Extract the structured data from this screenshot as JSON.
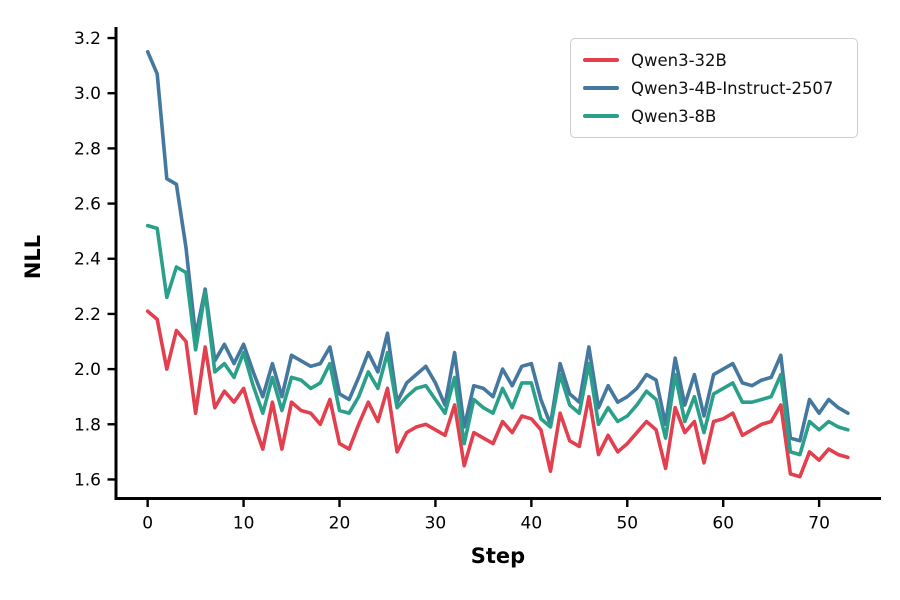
{
  "chart_data": {
    "type": "line",
    "title": "",
    "xlabel": "Step",
    "ylabel": "NLL",
    "x": [
      0,
      1,
      2,
      3,
      4,
      5,
      6,
      7,
      8,
      9,
      10,
      11,
      12,
      13,
      14,
      15,
      16,
      17,
      18,
      19,
      20,
      21,
      22,
      23,
      24,
      25,
      26,
      27,
      28,
      29,
      30,
      31,
      32,
      33,
      34,
      35,
      36,
      37,
      38,
      39,
      40,
      41,
      42,
      43,
      44,
      45,
      46,
      47,
      48,
      49,
      50,
      51,
      52,
      53,
      54,
      55,
      56,
      57,
      58,
      59,
      60,
      61,
      62,
      63,
      64,
      65,
      66,
      67,
      68,
      69,
      70,
      71,
      72,
      73
    ],
    "series": [
      {
        "name": "Qwen3-32B",
        "color": "#e2404e",
        "values": [
          2.21,
          2.18,
          2.0,
          2.14,
          2.1,
          1.84,
          2.08,
          1.86,
          1.92,
          1.88,
          1.93,
          1.81,
          1.71,
          1.88,
          1.71,
          1.88,
          1.85,
          1.84,
          1.8,
          1.89,
          1.73,
          1.71,
          1.8,
          1.88,
          1.81,
          1.93,
          1.7,
          1.77,
          1.79,
          1.8,
          1.78,
          1.76,
          1.87,
          1.65,
          1.77,
          1.75,
          1.73,
          1.81,
          1.77,
          1.83,
          1.82,
          1.78,
          1.63,
          1.84,
          1.74,
          1.72,
          1.9,
          1.69,
          1.76,
          1.7,
          1.73,
          1.77,
          1.81,
          1.78,
          1.64,
          1.86,
          1.77,
          1.81,
          1.66,
          1.81,
          1.82,
          1.84,
          1.76,
          1.78,
          1.8,
          1.81,
          1.87,
          1.62,
          1.61,
          1.7,
          1.67,
          1.71,
          1.69,
          1.68
        ]
      },
      {
        "name": "Qwen3-4B-Instruct-2507",
        "color": "#45789f",
        "values": [
          3.15,
          3.07,
          2.69,
          2.67,
          2.44,
          2.12,
          2.29,
          2.03,
          2.09,
          2.02,
          2.09,
          1.99,
          1.9,
          2.02,
          1.9,
          2.05,
          2.03,
          2.01,
          2.02,
          2.08,
          1.91,
          1.89,
          1.97,
          2.06,
          1.99,
          2.13,
          1.88,
          1.95,
          1.98,
          2.01,
          1.95,
          1.87,
          2.06,
          1.79,
          1.94,
          1.93,
          1.9,
          2.0,
          1.94,
          2.01,
          2.02,
          1.89,
          1.8,
          2.02,
          1.91,
          1.88,
          2.08,
          1.86,
          1.94,
          1.88,
          1.9,
          1.93,
          1.98,
          1.96,
          1.8,
          2.04,
          1.87,
          1.98,
          1.83,
          1.98,
          2.0,
          2.02,
          1.95,
          1.94,
          1.96,
          1.97,
          2.05,
          1.75,
          1.74,
          1.89,
          1.84,
          1.89,
          1.86,
          1.84
        ]
      },
      {
        "name": "Qwen3-8B",
        "color": "#2aa08a",
        "values": [
          2.52,
          2.51,
          2.26,
          2.37,
          2.35,
          2.07,
          2.28,
          1.99,
          2.02,
          1.97,
          2.06,
          1.94,
          1.84,
          1.97,
          1.85,
          1.97,
          1.96,
          1.93,
          1.95,
          2.02,
          1.85,
          1.84,
          1.9,
          1.99,
          1.93,
          2.06,
          1.86,
          1.9,
          1.93,
          1.94,
          1.89,
          1.84,
          1.97,
          1.73,
          1.89,
          1.86,
          1.84,
          1.93,
          1.86,
          1.95,
          1.95,
          1.82,
          1.79,
          1.98,
          1.87,
          1.84,
          2.02,
          1.8,
          1.86,
          1.81,
          1.83,
          1.87,
          1.92,
          1.89,
          1.75,
          1.98,
          1.81,
          1.9,
          1.77,
          1.91,
          1.93,
          1.95,
          1.88,
          1.88,
          1.89,
          1.9,
          1.98,
          1.7,
          1.69,
          1.81,
          1.78,
          1.81,
          1.79,
          1.78
        ]
      }
    ],
    "xticks": [
      0,
      10,
      20,
      30,
      40,
      50,
      60,
      70
    ],
    "yticks": [
      1.6,
      1.8,
      2.0,
      2.2,
      2.4,
      2.6,
      2.8,
      3.0,
      3.2
    ],
    "xlim": [
      -3.3,
      76.45
    ],
    "ylim": [
      1.531,
      3.24
    ],
    "grid": false,
    "legend_position": "upper right",
    "spine_color": "#000000",
    "tick_label_size": 17,
    "line_width": 3.6
  }
}
